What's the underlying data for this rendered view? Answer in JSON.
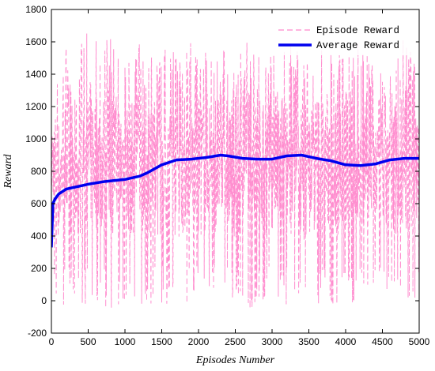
{
  "chart_data": {
    "type": "line",
    "xlabel": "Episodes Number",
    "ylabel": "Reward",
    "xlim": [
      0,
      5000
    ],
    "ylim": [
      -200,
      1800
    ],
    "xticks": [
      0,
      500,
      1000,
      1500,
      2000,
      2500,
      3000,
      3500,
      4000,
      4500,
      5000
    ],
    "yticks": [
      -200,
      0,
      200,
      400,
      600,
      800,
      1000,
      1200,
      1400,
      1600,
      1800
    ],
    "grid": false,
    "legend": {
      "position": "top-right",
      "entries": [
        "Episode Reward",
        "Average Reward"
      ]
    },
    "series": [
      {
        "name": "Episode Reward",
        "style": "dashed",
        "color": "#ff88cc",
        "x": [
          0,
          50,
          100,
          200,
          300,
          400,
          500,
          600,
          700,
          800,
          900,
          1000,
          1100,
          1200,
          1300,
          1400,
          1500,
          1600,
          1700,
          1800,
          1900,
          2000,
          2100,
          2200,
          2300,
          2400,
          2500,
          2600,
          2700,
          2800,
          2900,
          3000,
          3100,
          3200,
          3300,
          3400,
          3500,
          3600,
          3700,
          3800,
          3900,
          4000,
          4100,
          4200,
          4300,
          4400,
          4500,
          4600,
          4700,
          4800,
          4900,
          5000
        ],
        "min": [
          300,
          -20,
          -50,
          -40,
          -30,
          -50,
          -30,
          -20,
          -40,
          -60,
          -30,
          -10,
          -40,
          -20,
          -50,
          -30,
          -40,
          -20,
          -60,
          -30,
          -20,
          -40,
          -50,
          -20,
          -30,
          -40,
          -30,
          -20,
          -50,
          -30,
          -40,
          -20,
          -60,
          -40,
          -30,
          -80,
          -40,
          -20,
          -30,
          -40,
          -50,
          -30,
          -40,
          -20,
          -60,
          -30,
          -40,
          -20,
          -30,
          -50,
          -40,
          50
        ],
        "max": [
          1300,
          1450,
          1380,
          1560,
          1500,
          1580,
          1670,
          1640,
          1600,
          1640,
          1550,
          1600,
          1500,
          1650,
          1620,
          1520,
          1560,
          1600,
          1500,
          1560,
          1620,
          1540,
          1580,
          1620,
          1560,
          1600,
          1500,
          1620,
          1580,
          1520,
          1600,
          1560,
          1620,
          1580,
          1600,
          1550,
          1500,
          1580,
          1600,
          1560,
          1520,
          1640,
          1560,
          1600,
          1520,
          1580,
          1500,
          1620,
          1560,
          1640,
          1600,
          1620
        ]
      },
      {
        "name": "Average Reward",
        "style": "solid",
        "color": "#0000ee",
        "x": [
          0,
          20,
          50,
          100,
          200,
          300,
          500,
          700,
          1000,
          1200,
          1300,
          1500,
          1700,
          1900,
          2100,
          2300,
          2400,
          2600,
          2800,
          3000,
          3200,
          3400,
          3600,
          3800,
          4000,
          4200,
          4400,
          4600,
          4800,
          5000
        ],
        "y": [
          330,
          600,
          630,
          660,
          690,
          700,
          720,
          735,
          750,
          770,
          790,
          840,
          870,
          875,
          885,
          900,
          895,
          880,
          875,
          875,
          895,
          900,
          880,
          865,
          840,
          835,
          845,
          870,
          880,
          880
        ]
      }
    ]
  }
}
